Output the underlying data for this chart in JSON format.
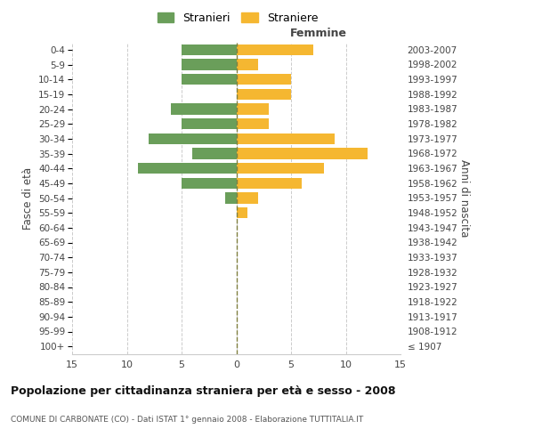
{
  "age_groups": [
    "100+",
    "95-99",
    "90-94",
    "85-89",
    "80-84",
    "75-79",
    "70-74",
    "65-69",
    "60-64",
    "55-59",
    "50-54",
    "45-49",
    "40-44",
    "35-39",
    "30-34",
    "25-29",
    "20-24",
    "15-19",
    "10-14",
    "5-9",
    "0-4"
  ],
  "birth_years": [
    "≤ 1907",
    "1908-1912",
    "1913-1917",
    "1918-1922",
    "1923-1927",
    "1928-1932",
    "1933-1937",
    "1938-1942",
    "1943-1947",
    "1948-1952",
    "1953-1957",
    "1958-1962",
    "1963-1967",
    "1968-1972",
    "1973-1977",
    "1978-1982",
    "1983-1987",
    "1988-1992",
    "1993-1997",
    "1998-2002",
    "2003-2007"
  ],
  "males": [
    0,
    0,
    0,
    0,
    0,
    0,
    0,
    0,
    0,
    0,
    1,
    5,
    9,
    4,
    8,
    5,
    6,
    0,
    5,
    5,
    5
  ],
  "females": [
    0,
    0,
    0,
    0,
    0,
    0,
    0,
    0,
    0,
    1,
    2,
    6,
    8,
    12,
    9,
    3,
    3,
    5,
    5,
    2,
    7
  ],
  "male_color": "#6a9e5a",
  "female_color": "#f5b731",
  "background_color": "#ffffff",
  "grid_color": "#cccccc",
  "title": "Popolazione per cittadinanza straniera per età e sesso - 2008",
  "subtitle": "COMUNE DI CARBONATE (CO) - Dati ISTAT 1° gennaio 2008 - Elaborazione TUTTITALIA.IT",
  "xlabel_right": "Femmine",
  "ylabel_left": "Fasce di età",
  "ylabel_right": "Anni di nascita",
  "legend_males": "Stranieri",
  "legend_females": "Straniere",
  "xlim": 15,
  "zero_line_color": "#808040"
}
